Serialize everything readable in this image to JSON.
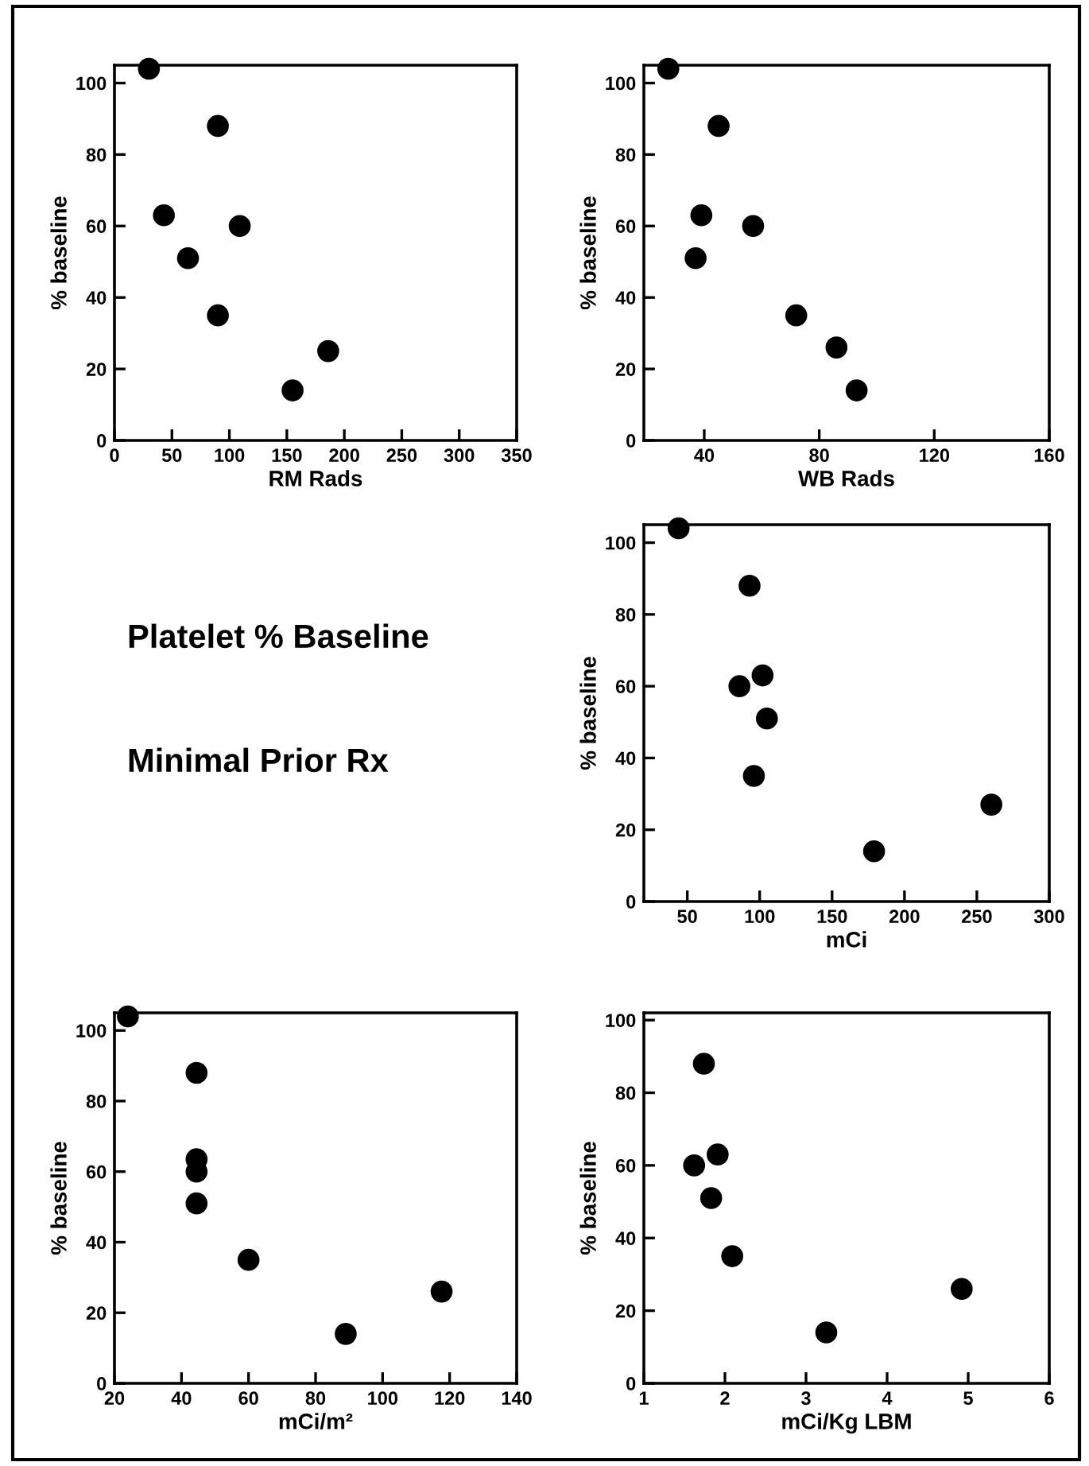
{
  "chart_data": [
    {
      "type": "scatter",
      "xlabel": "RM Rads",
      "ylabel": "% baseline",
      "xlim": [
        0,
        350
      ],
      "ylim": [
        0,
        105
      ],
      "xticks": [
        0,
        50,
        100,
        150,
        200,
        250,
        300,
        350
      ],
      "yticks": [
        0,
        20,
        40,
        60,
        80,
        100
      ],
      "marker": "circle",
      "series": [
        {
          "color": "#000000",
          "x": [
            30,
            43,
            64,
            90,
            90,
            109,
            155,
            186
          ],
          "values": [
            104,
            63,
            51,
            88,
            35,
            60,
            14,
            25
          ]
        }
      ]
    },
    {
      "type": "scatter",
      "xlabel": "WB Rads",
      "ylabel": "% baseline",
      "xlim": [
        19,
        160
      ],
      "ylim": [
        0,
        105
      ],
      "xticks": [
        40,
        80,
        120,
        160
      ],
      "yticks": [
        0,
        20,
        40,
        60,
        80,
        100
      ],
      "marker": "circle",
      "series": [
        {
          "color": "#000000",
          "x": [
            27.5,
            45,
            39,
            37,
            57,
            72,
            86,
            93
          ],
          "values": [
            104,
            88,
            63,
            51,
            60,
            35,
            26,
            14
          ]
        }
      ]
    },
    {
      "type": "scatter",
      "xlabel": "mCi",
      "ylabel": "% baseline",
      "xlim": [
        20,
        300
      ],
      "ylim": [
        0,
        105
      ],
      "xticks": [
        50,
        100,
        150,
        200,
        250,
        300
      ],
      "yticks": [
        0,
        20,
        40,
        60,
        80,
        100
      ],
      "marker": "circle",
      "series": [
        {
          "color": "#000000",
          "x": [
            44,
            93,
            86,
            102,
            105,
            96,
            179,
            260
          ],
          "values": [
            104,
            88,
            60,
            63,
            51,
            35,
            14,
            27
          ]
        }
      ]
    },
    {
      "type": "scatter",
      "xlabel": "mCi/m²",
      "ylabel": "% baseline",
      "xlim": [
        20,
        140
      ],
      "ylim": [
        0,
        105
      ],
      "xticks": [
        20,
        40,
        60,
        80,
        100,
        120,
        140
      ],
      "yticks": [
        0,
        20,
        40,
        60,
        80,
        100
      ],
      "marker": "circle",
      "series": [
        {
          "color": "#000000",
          "x": [
            24,
            44.5,
            44.5,
            44.5,
            44.5,
            60,
            89,
            117.6
          ],
          "values": [
            104,
            88,
            63.5,
            60,
            51,
            35,
            14,
            26
          ]
        }
      ]
    },
    {
      "type": "scatter",
      "xlabel": "mCi/Kg LBM",
      "ylabel": "% baseline",
      "xlim": [
        1,
        6
      ],
      "ylim": [
        0,
        102
      ],
      "xticks": [
        1,
        2,
        3,
        4,
        5,
        6
      ],
      "yticks": [
        0,
        20,
        40,
        60,
        80,
        100
      ],
      "marker": "circle",
      "series": [
        {
          "color": "#000000",
          "x": [
            1.74,
            1.62,
            1.91,
            1.83,
            2.09,
            3.25,
            4.92
          ],
          "values": [
            88,
            60,
            63,
            51,
            35,
            14,
            26
          ]
        }
      ]
    },
    {
      "type": "other",
      "annotations": [
        "Platelet % Baseline",
        "Minimal Prior Rx"
      ]
    }
  ]
}
